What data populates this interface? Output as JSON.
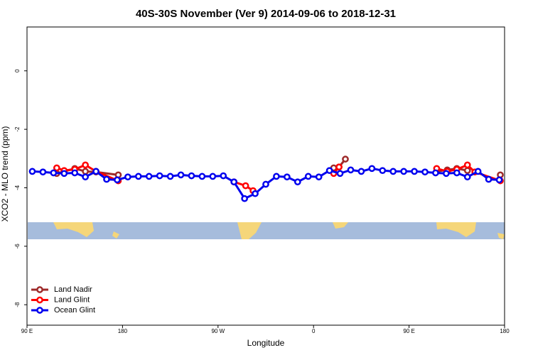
{
  "chart_data": {
    "type": "line",
    "title": "40S-30S November (Ver 9)   2014-09-06 to 2018-12-31",
    "x_label": "Longitude",
    "y_label": "XCO2 - MLO trend (ppm)",
    "xlim": [
      90,
      540
    ],
    "ylim": [
      -8.7,
      1.5
    ],
    "xticks": [
      {
        "value": 90,
        "label": "90 E"
      },
      180,
      {
        "value": 270,
        "label": "90 W"
      },
      {
        "value": 360,
        "label": "0"
      },
      {
        "value": 450,
        "label": "90 E"
      },
      {
        "value": 540,
        "label": "180"
      }
    ],
    "yticks": [
      0,
      -2,
      -4,
      -6,
      -8
    ],
    "legend": "bottom-left",
    "series": [
      {
        "name": "Land Nadir",
        "color": "#9e2a2a",
        "x": [
          118,
          125,
          135,
          145,
          155,
          176,
          379,
          384,
          390,
          476,
          486,
          495,
          505,
          536
        ],
        "values": [
          -3.51,
          -3.44,
          -3.34,
          -3.44,
          -3.46,
          -3.56,
          -3.32,
          -3.29,
          -3.02,
          -3.44,
          -3.39,
          -3.34,
          -3.41,
          -3.56
        ]
      },
      {
        "name": "Land Glint",
        "color": "#ff0000",
        "x": [
          118,
          125,
          135,
          145,
          155,
          176,
          285,
          296,
          303,
          379,
          384,
          476,
          486,
          495,
          505,
          512,
          536
        ],
        "values": [
          -3.32,
          -3.41,
          -3.37,
          -3.22,
          -3.44,
          -3.76,
          -3.8,
          -3.93,
          -4.1,
          -3.51,
          -3.29,
          -3.34,
          -3.44,
          -3.37,
          -3.22,
          -3.46,
          -3.76
        ]
      },
      {
        "name": "Ocean Glint",
        "color": "#0000ee",
        "x": [
          95,
          105,
          115,
          125,
          135,
          145,
          155,
          165,
          175,
          185,
          195,
          205,
          215,
          225,
          235,
          245,
          255,
          265,
          275,
          285,
          295,
          305,
          315,
          325,
          335,
          345,
          355,
          365,
          375,
          385,
          395,
          405,
          415,
          425,
          435,
          445,
          455,
          465,
          475,
          485,
          495,
          505,
          515,
          525,
          535
        ],
        "values": [
          -3.44,
          -3.46,
          -3.49,
          -3.51,
          -3.49,
          -3.63,
          -3.44,
          -3.71,
          -3.73,
          -3.63,
          -3.61,
          -3.61,
          -3.59,
          -3.61,
          -3.56,
          -3.59,
          -3.61,
          -3.61,
          -3.59,
          -3.8,
          -4.37,
          -4.2,
          -3.88,
          -3.61,
          -3.63,
          -3.8,
          -3.61,
          -3.63,
          -3.41,
          -3.51,
          -3.39,
          -3.44,
          -3.34,
          -3.41,
          -3.44,
          -3.44,
          -3.44,
          -3.46,
          -3.49,
          -3.51,
          -3.49,
          -3.63,
          -3.44,
          -3.71,
          -3.73
        ]
      }
    ]
  }
}
